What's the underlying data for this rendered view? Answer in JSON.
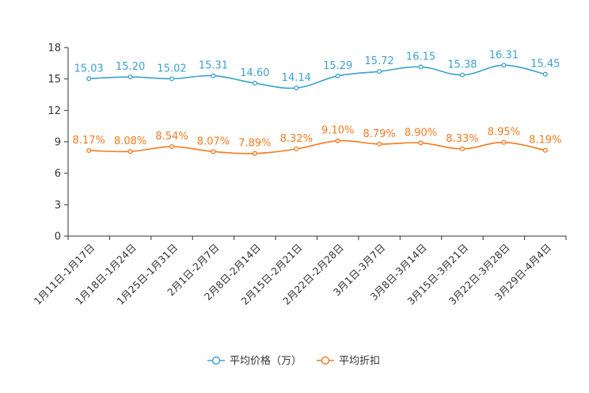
{
  "chart_data": {
    "type": "line",
    "title": "",
    "xlabel": "",
    "ylabel": "",
    "ylim": [
      0,
      18
    ],
    "yticks": [
      0,
      3,
      6,
      9,
      12,
      15,
      18
    ],
    "grid": false,
    "legend_position": "bottom-center",
    "categories": [
      "1月11日-1月17日",
      "1月18日-1月24日",
      "1月25日-1月31日",
      "2月1日-2月7日",
      "2月8日-2月14日",
      "2月15日-2月21日",
      "2月22日-2月28日",
      "3月1日-3月7日",
      "3月8日-3月14日",
      "3月15日-3月21日",
      "3月22日-3月28日",
      "3月29日-4月4日"
    ],
    "series": [
      {
        "name": "平均价格（万）",
        "color": "#3ba1d0",
        "values": [
          15.03,
          15.2,
          15.02,
          15.31,
          14.6,
          14.14,
          15.29,
          15.72,
          16.15,
          15.38,
          16.31,
          15.45
        ],
        "labels": [
          "15.03",
          "15.20",
          "15.02",
          "15.31",
          "14.60",
          "14.14",
          "15.29",
          "15.72",
          "16.15",
          "15.38",
          "16.31",
          "15.45"
        ]
      },
      {
        "name": "平均折扣",
        "color": "#f47a20",
        "values": [
          8.17,
          8.08,
          8.54,
          8.07,
          7.89,
          8.32,
          9.1,
          8.79,
          8.9,
          8.33,
          8.95,
          8.19
        ],
        "labels": [
          "8.17%",
          "8.08%",
          "8.54%",
          "8.07%",
          "7.89%",
          "8.32%",
          "9.10%",
          "8.79%",
          "8.90%",
          "8.33%",
          "8.95%",
          "8.19%"
        ]
      }
    ]
  }
}
